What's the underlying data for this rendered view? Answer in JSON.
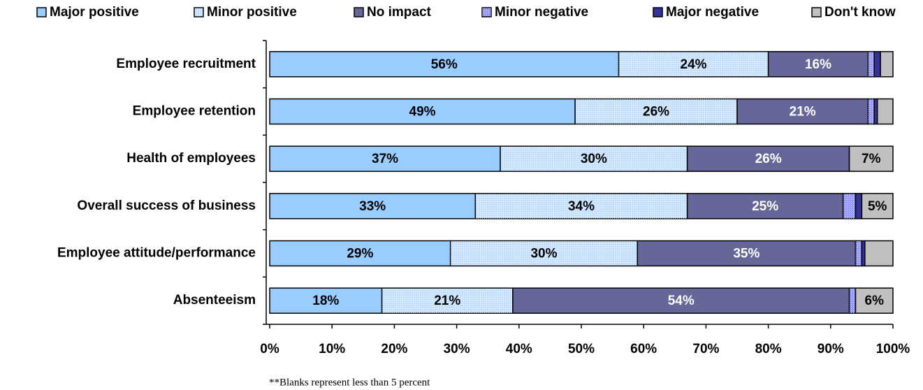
{
  "chart_data": {
    "type": "stacked_barh",
    "categories": [
      "Employee recruitment",
      "Employee retention",
      "Health of employees",
      "Overall success of business",
      "Employee attitude/performance",
      "Absenteeism"
    ],
    "series": [
      {
        "name": "Major positive",
        "color": "#99ccff",
        "values": [
          56,
          49,
          37,
          33,
          29,
          18
        ],
        "value_labels": [
          "56%",
          "49%",
          "37%",
          "33%",
          "29%",
          "18%"
        ]
      },
      {
        "name": "Minor positive",
        "color": "#cce6ff",
        "pattern": "dots",
        "values": [
          24,
          26,
          30,
          34,
          30,
          21
        ],
        "value_labels": [
          "24%",
          "26%",
          "30%",
          "34%",
          "30%",
          "21%"
        ]
      },
      {
        "name": "No impact",
        "color": "#666699",
        "values": [
          16,
          21,
          26,
          25,
          35,
          54
        ],
        "value_labels": [
          "16%",
          "21%",
          "26%",
          "25%",
          "35%",
          "54%"
        ]
      },
      {
        "name": "Minor negative",
        "color": "#9999ff",
        "pattern": "dots",
        "values": [
          1,
          1,
          0,
          2,
          1,
          1
        ],
        "value_labels": [
          null,
          null,
          null,
          null,
          null,
          null
        ]
      },
      {
        "name": "Major negative",
        "color": "#333399",
        "values": [
          1,
          0.5,
          0,
          1,
          0.5,
          0
        ],
        "value_labels": [
          null,
          null,
          null,
          null,
          null,
          null
        ]
      },
      {
        "name": "Don't know",
        "color": "#c0c0c0",
        "values": [
          2,
          2.5,
          7,
          5,
          4.5,
          6
        ],
        "value_labels": [
          null,
          null,
          "7%",
          "5%",
          null,
          "6%"
        ]
      }
    ],
    "xlim": [
      0,
      100
    ],
    "xticks": [
      {
        "value": 0,
        "label": "0%"
      },
      {
        "value": 10,
        "label": "10%"
      },
      {
        "value": 20,
        "label": "20%"
      },
      {
        "value": 30,
        "label": "30%"
      },
      {
        "value": 40,
        "label": "40%"
      },
      {
        "value": 50,
        "label": "50%"
      },
      {
        "value": 60,
        "label": "60%"
      },
      {
        "value": 70,
        "label": "70%"
      },
      {
        "value": 80,
        "label": "80%"
      },
      {
        "value": 90,
        "label": "90%"
      },
      {
        "value": 100,
        "label": "100%"
      }
    ],
    "legend": "top",
    "note": "**Blanks represent less than 5 percent"
  }
}
